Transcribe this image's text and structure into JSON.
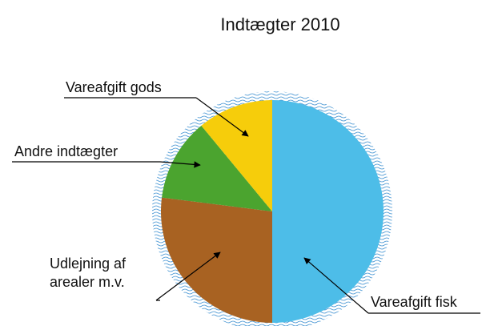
{
  "chart_data": {
    "type": "pie",
    "title": "Indtægter 2010",
    "categories": [
      "Vareafgift fisk",
      "Udlejning af arealer m.v.",
      "Andre indtægter",
      "Vareafgift gods"
    ],
    "values": [
      50,
      27,
      12,
      11
    ],
    "colors": [
      "#4dbde8",
      "#a86222",
      "#4ba42f",
      "#f6cd0b"
    ]
  }
}
